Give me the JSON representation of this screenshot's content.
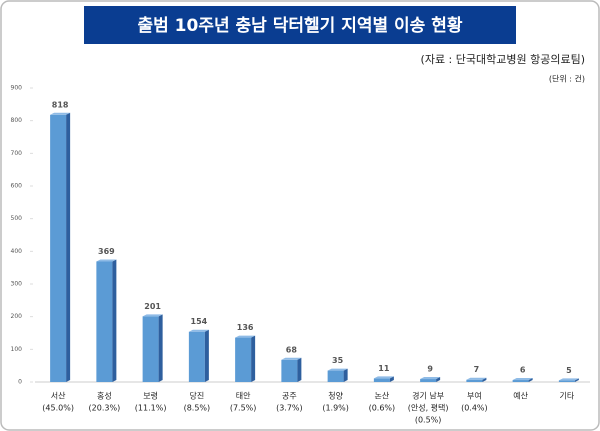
{
  "chart_data": {
    "type": "bar",
    "title": "출범 10주년 충남 닥터헬기 지역별 이송 현황",
    "source": "(자료 : 단국대학교병원 항공의료팀)",
    "unit": "(단위 : 건)",
    "categories": [
      [
        "서산",
        "(45.0%)"
      ],
      [
        "홍성",
        "(20.3%)"
      ],
      [
        "보령",
        "(11.1%)"
      ],
      [
        "당진",
        "(8.5%)"
      ],
      [
        "태안",
        "(7.5%)"
      ],
      [
        "공주",
        "(3.7%)"
      ],
      [
        "청양",
        "(1.9%)"
      ],
      [
        "논산",
        "(0.6%)"
      ],
      [
        "경기 남부",
        "(안성, 평택)",
        "(0.5%)"
      ],
      [
        "부여",
        "(0.4%)"
      ],
      [
        "예산"
      ],
      [
        "기타"
      ]
    ],
    "values": [
      818,
      369,
      201,
      154,
      136,
      68,
      35,
      11,
      9,
      7,
      6,
      5
    ],
    "color": "#5b9bd5",
    "ylim": [
      0,
      900
    ],
    "yticks": [
      0,
      100,
      200,
      300,
      400,
      500,
      600,
      700,
      800,
      900
    ]
  }
}
